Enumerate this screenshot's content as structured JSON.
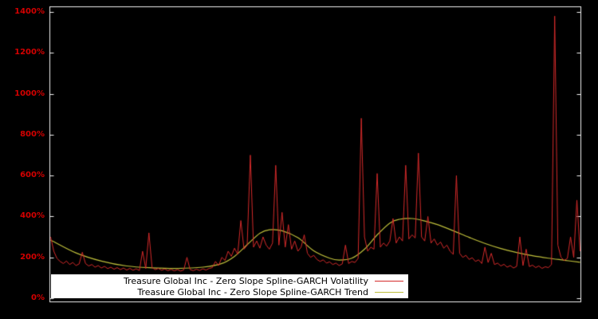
{
  "figure": {
    "background": "#000000",
    "frame_color": "#f2f2f2"
  },
  "y_axis": {
    "color": "#d40000",
    "tick_labels": [
      "0%",
      "200%",
      "400%",
      "600%",
      "800%",
      "1000%",
      "1200%",
      "1400%"
    ],
    "tick_values": [
      0,
      200,
      400,
      600,
      800,
      1000,
      1200,
      1400
    ]
  },
  "legend": {
    "background": "#ffffff",
    "text_color": "#000000",
    "items": [
      {
        "label": "Treasure Global Inc - Zero Slope Spline-GARCH Volatility",
        "color": "#d42a2a"
      },
      {
        "label": "Treasure Global Inc - Zero Slope Spline-GARCH Trend",
        "color": "#bdbd3a"
      }
    ]
  },
  "chart_data": {
    "type": "line",
    "title": "",
    "xlabel": "",
    "ylabel": "",
    "ylim": [
      0,
      1400
    ],
    "y_tick_format": "percent",
    "grid": false,
    "background": "black",
    "legend_position": "bottom-center",
    "x_axis_labels_visible": false,
    "series": [
      {
        "name": "Treasure Global Inc - Zero Slope Spline-GARCH Volatility",
        "color": "#d42a2a",
        "style": "jagged",
        "values": [
          300,
          230,
          195,
          180,
          170,
          182,
          165,
          175,
          160,
          168,
          225,
          170,
          158,
          165,
          152,
          160,
          148,
          156,
          145,
          152,
          142,
          150,
          140,
          148,
          138,
          146,
          137,
          144,
          136,
          230,
          145,
          320,
          150,
          140,
          146,
          137,
          143,
          135,
          141,
          134,
          140,
          133,
          139,
          200,
          140,
          135,
          142,
          136,
          144,
          138,
          146,
          150,
          180,
          160,
          200,
          185,
          230,
          205,
          245,
          215,
          380,
          240,
          260,
          700,
          250,
          280,
          245,
          300,
          260,
          240,
          270,
          650,
          260,
          420,
          250,
          360,
          240,
          280,
          230,
          250,
          310,
          220,
          200,
          210,
          190,
          180,
          188,
          172,
          178,
          165,
          172,
          160,
          168,
          260,
          170,
          180,
          175,
          195,
          880,
          300,
          230,
          250,
          240,
          610,
          250,
          270,
          255,
          280,
          390,
          270,
          300,
          280,
          650,
          290,
          310,
          295,
          710,
          300,
          280,
          400,
          270,
          290,
          260,
          275,
          245,
          260,
          230,
          215,
          600,
          220,
          200,
          210,
          190,
          198,
          180,
          188,
          170,
          250,
          175,
          220,
          165,
          172,
          158,
          166,
          152,
          160,
          148,
          156,
          300,
          160,
          240,
          155,
          162,
          150,
          158,
          146,
          154,
          150,
          165,
          1380,
          260,
          200,
          185,
          195,
          300,
          200,
          480,
          230
        ]
      },
      {
        "name": "Treasure Global Inc - Zero Slope Spline-GARCH Trend",
        "color": "#bdbd3a",
        "style": "smooth",
        "points": [
          [
            0,
            285
          ],
          [
            8,
            222
          ],
          [
            16,
            182
          ],
          [
            24,
            158
          ],
          [
            32,
            149
          ],
          [
            40,
            146
          ],
          [
            48,
            152
          ],
          [
            54,
            170
          ],
          [
            58,
            205
          ],
          [
            62,
            262
          ],
          [
            66,
            318
          ],
          [
            69,
            335
          ],
          [
            73,
            330
          ],
          [
            78,
            296
          ],
          [
            83,
            232
          ],
          [
            88,
            196
          ],
          [
            91,
            187
          ],
          [
            95,
            196
          ],
          [
            99,
            240
          ],
          [
            103,
            310
          ],
          [
            107,
            368
          ],
          [
            110,
            386
          ],
          [
            114,
            390
          ],
          [
            118,
            378
          ],
          [
            122,
            360
          ],
          [
            127,
            330
          ],
          [
            132,
            298
          ],
          [
            137,
            268
          ],
          [
            142,
            243
          ],
          [
            147,
            224
          ],
          [
            152,
            208
          ],
          [
            157,
            196
          ],
          [
            162,
            186
          ],
          [
            167,
            176
          ]
        ]
      }
    ]
  }
}
